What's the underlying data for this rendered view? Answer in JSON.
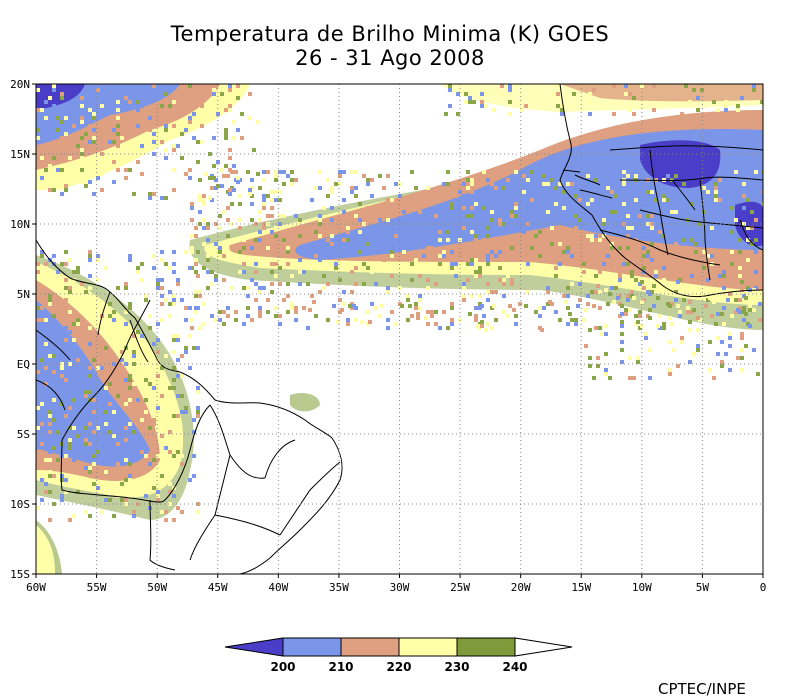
{
  "title_line1": "Temperatura de Brilho Minima (K) GOES",
  "title_line2": "26 - 31 Ago 2008",
  "map": {
    "lon_ticks": [
      "60W",
      "55W",
      "50W",
      "45W",
      "40W",
      "35W",
      "30W",
      "25W",
      "20W",
      "15W",
      "10W",
      "5W",
      "0"
    ],
    "lat_ticks": [
      "20N",
      "15N",
      "10N",
      "5N",
      "EQ",
      "5S",
      "10S",
      "15S"
    ],
    "lon_range": [
      -60,
      0
    ],
    "lat_range": [
      -15,
      20
    ],
    "grid": "dotted"
  },
  "legend": {
    "levels": [
      "200",
      "210",
      "220",
      "230",
      "240"
    ],
    "colors": [
      "#4a3dc8",
      "#7b96e8",
      "#dea080",
      "#ffffa8",
      "#7f9a3a"
    ]
  },
  "credit": "CPTEC/INPE"
}
